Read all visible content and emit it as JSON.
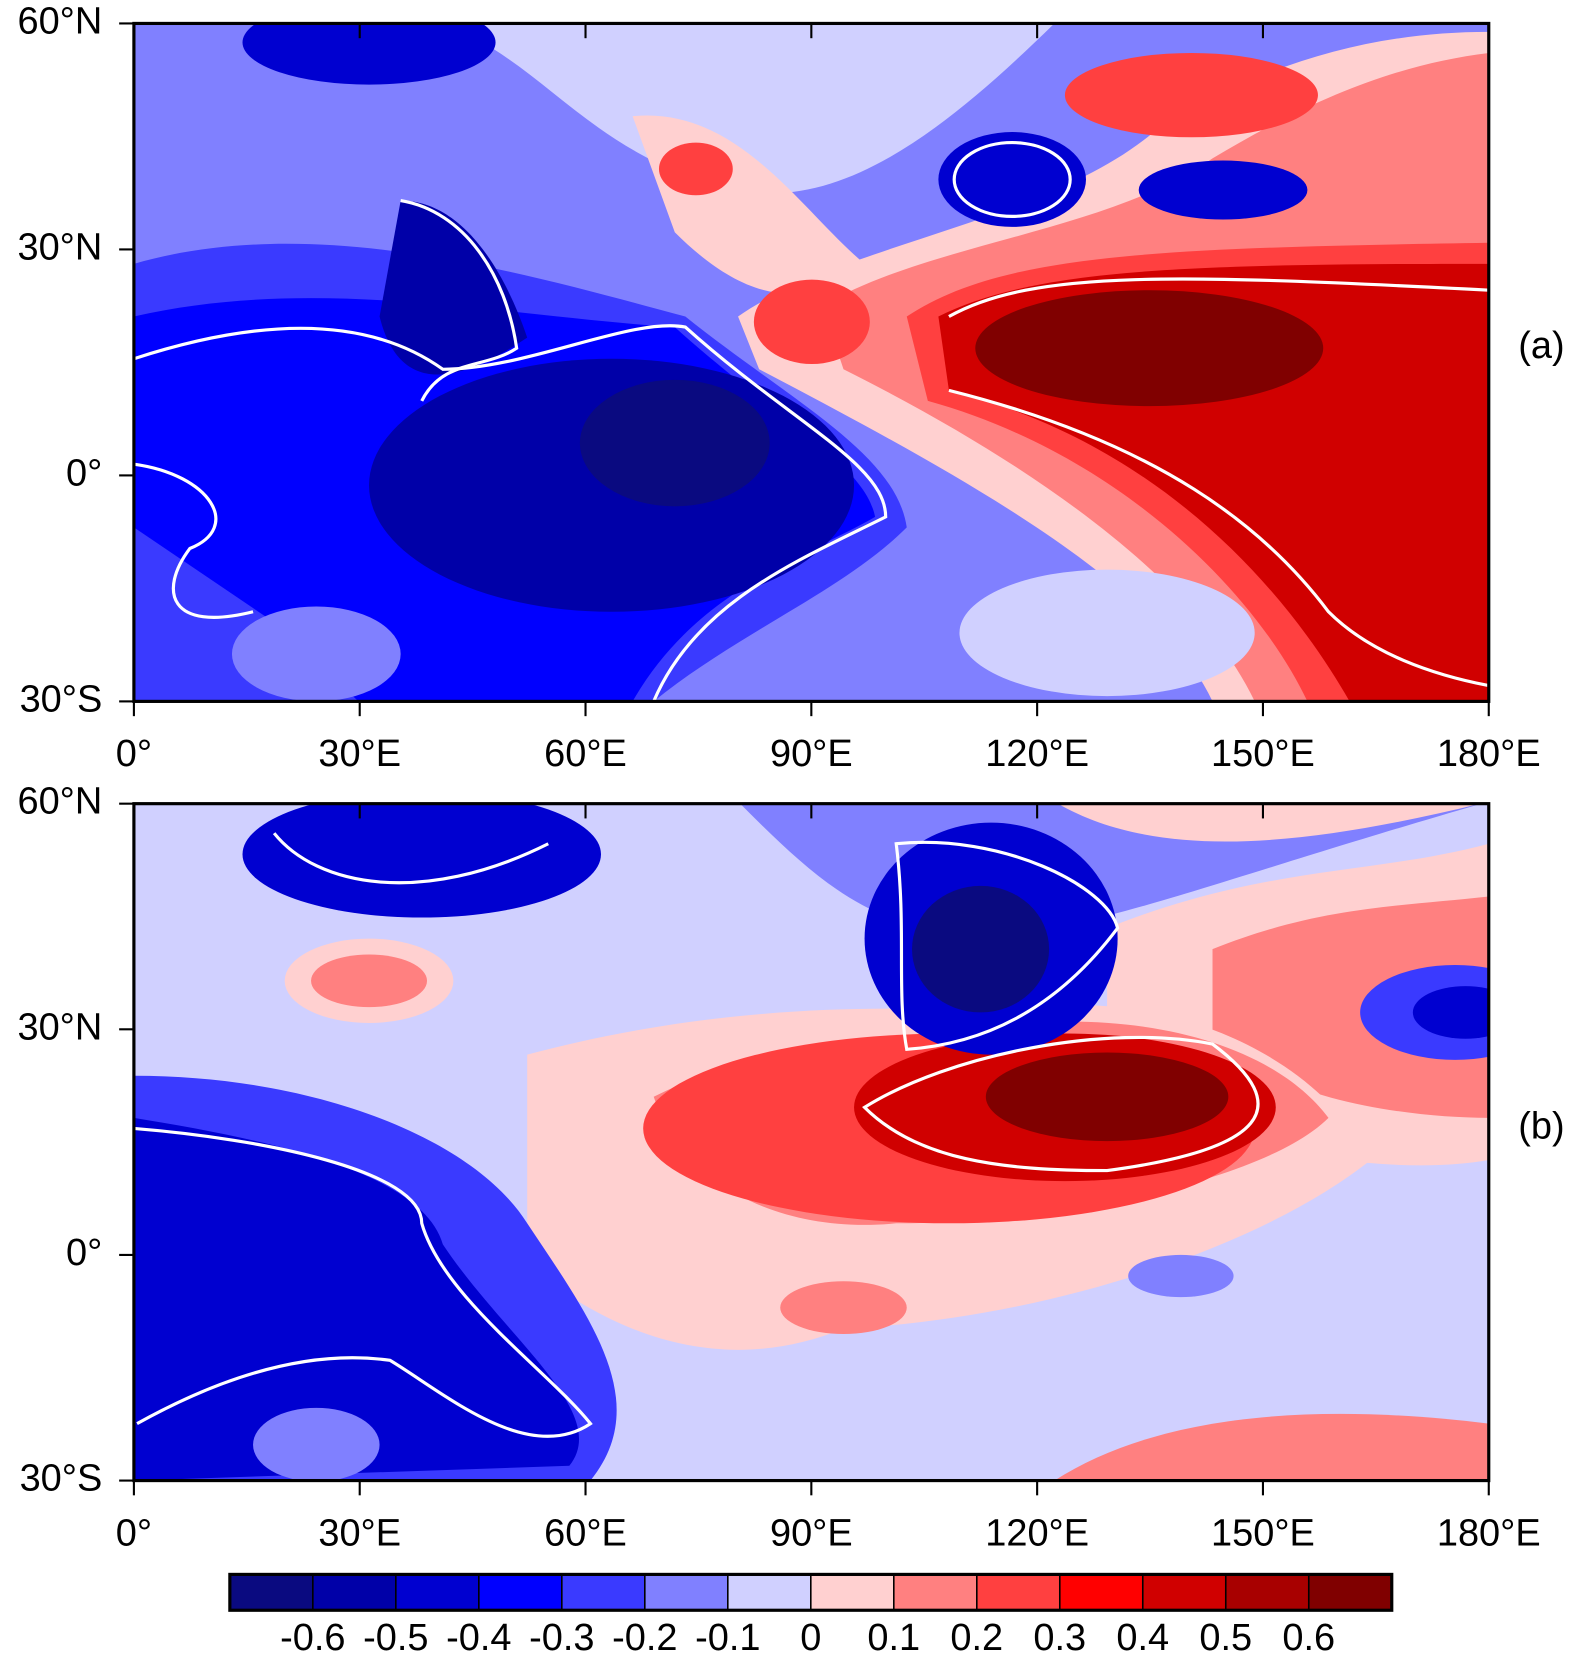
{
  "panels": [
    {
      "label": "(a)",
      "xticks": [
        {
          "value": 0,
          "label": "0°"
        },
        {
          "value": 30,
          "label": "30°E"
        },
        {
          "value": 60,
          "label": "60°E"
        },
        {
          "value": 90,
          "label": "90°E"
        },
        {
          "value": 120,
          "label": "120°E"
        },
        {
          "value": 150,
          "label": "150°E"
        },
        {
          "value": 180,
          "label": "180°E"
        }
      ],
      "yticks": [
        {
          "value": -30,
          "label": "30°S"
        },
        {
          "value": 0,
          "label": "0°"
        },
        {
          "value": 30,
          "label": "30°N"
        },
        {
          "value": 60,
          "label": "60°N"
        }
      ],
      "xlim": [
        0,
        180
      ],
      "ylim": [
        -30,
        60
      ]
    },
    {
      "label": "(b)",
      "xticks": [
        {
          "value": 0,
          "label": "0°"
        },
        {
          "value": 30,
          "label": "30°E"
        },
        {
          "value": 60,
          "label": "60°E"
        },
        {
          "value": 90,
          "label": "90°E"
        },
        {
          "value": 120,
          "label": "120°E"
        },
        {
          "value": 150,
          "label": "150°E"
        },
        {
          "value": 180,
          "label": "180°E"
        }
      ],
      "yticks": [
        {
          "value": -30,
          "label": "30°S"
        },
        {
          "value": 0,
          "label": "0°"
        },
        {
          "value": 30,
          "label": "30°N"
        },
        {
          "value": 60,
          "label": "60°N"
        }
      ],
      "xlim": [
        0,
        180
      ],
      "ylim": [
        -30,
        60
      ]
    }
  ],
  "colorbar": {
    "levels": [
      -0.6,
      -0.5,
      -0.4,
      -0.3,
      -0.2,
      -0.1,
      0,
      0.1,
      0.2,
      0.3,
      0.4,
      0.5,
      0.6
    ],
    "colors": [
      "#0a0a80",
      "#0000a8",
      "#0000d0",
      "#0000ff",
      "#3a3aff",
      "#8080ff",
      "#d0d0ff",
      "#ffd0d0",
      "#ff8080",
      "#ff4040",
      "#ff0000",
      "#d00000",
      "#a80000",
      "#800000"
    ]
  }
}
